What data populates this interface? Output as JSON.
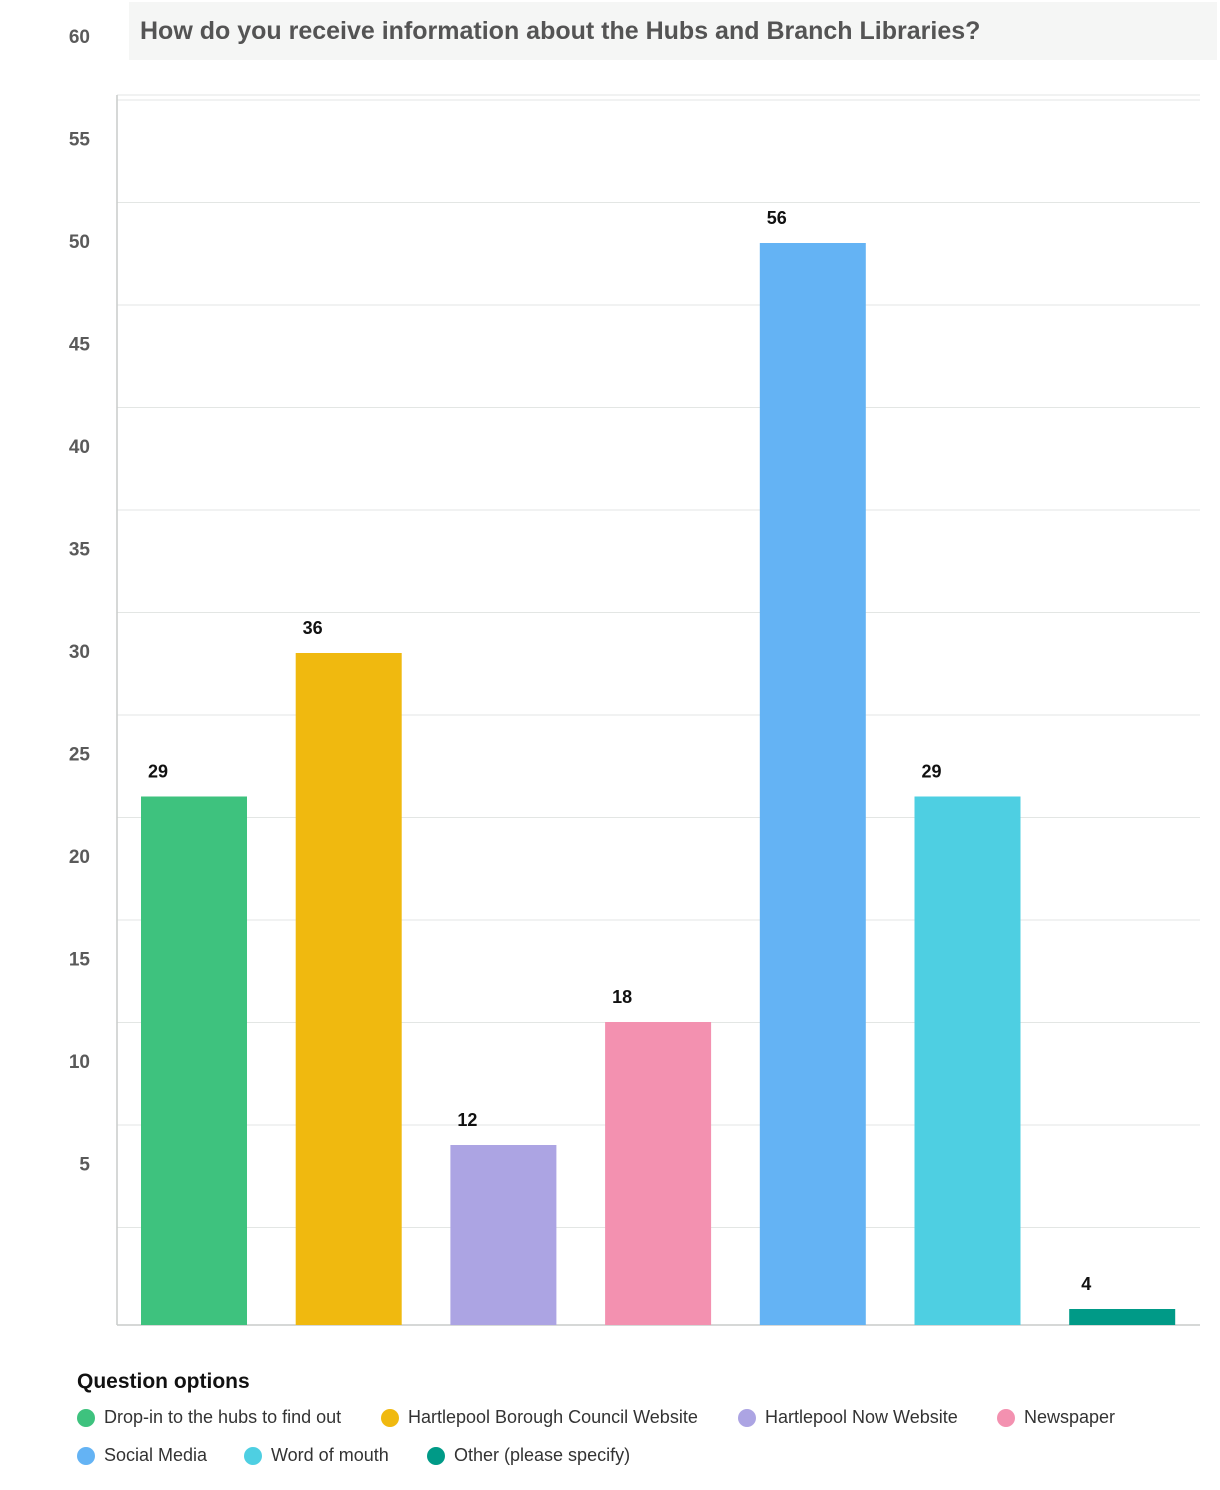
{
  "header": {
    "title": "How do you receive information about the Hubs and Branch Libraries?"
  },
  "chart_data": {
    "type": "bar",
    "title": "How do you receive information about the Hubs and Branch Libraries?",
    "xlabel": "",
    "ylabel": "",
    "categories": [
      "Drop-in to the hubs to find out",
      "Hartlepool Borough Council Website",
      "Hartlepool Now Website",
      "Newspaper",
      "Social Media",
      "Word of mouth",
      "Other (please specify)"
    ],
    "values": [
      29,
      36,
      12,
      18,
      56,
      29,
      4
    ],
    "value_labels": [
      "29",
      "36",
      "12",
      "18",
      "56",
      "29",
      "4"
    ],
    "colors": [
      "#3ec27e",
      "#f0b90f",
      "#aca4e3",
      "#f391b0",
      "#64b3f4",
      "#4ecfe2",
      "#009a87"
    ],
    "ylim": [
      0,
      60
    ],
    "yticks": [
      5,
      10,
      15,
      20,
      25,
      30,
      35,
      40,
      45,
      50,
      55,
      60
    ],
    "ytick_labels": [
      "5",
      "10",
      "15",
      "20",
      "25",
      "30",
      "35",
      "40",
      "45",
      "50",
      "55",
      "60"
    ],
    "grid": true,
    "legend_position": "bottom"
  },
  "legend": {
    "title": "Question options",
    "items": [
      {
        "label": "Drop-in to the hubs to find out",
        "color": "#3ec27e"
      },
      {
        "label": "Hartlepool Borough Council Website",
        "color": "#f0b90f"
      },
      {
        "label": "Hartlepool Now Website",
        "color": "#aca4e3"
      },
      {
        "label": "Newspaper",
        "color": "#f391b0"
      },
      {
        "label": "Social Media",
        "color": "#64b3f4"
      },
      {
        "label": "Word of mouth",
        "color": "#4ecfe2"
      },
      {
        "label": "Other (please specify)",
        "color": "#009a87"
      }
    ]
  }
}
